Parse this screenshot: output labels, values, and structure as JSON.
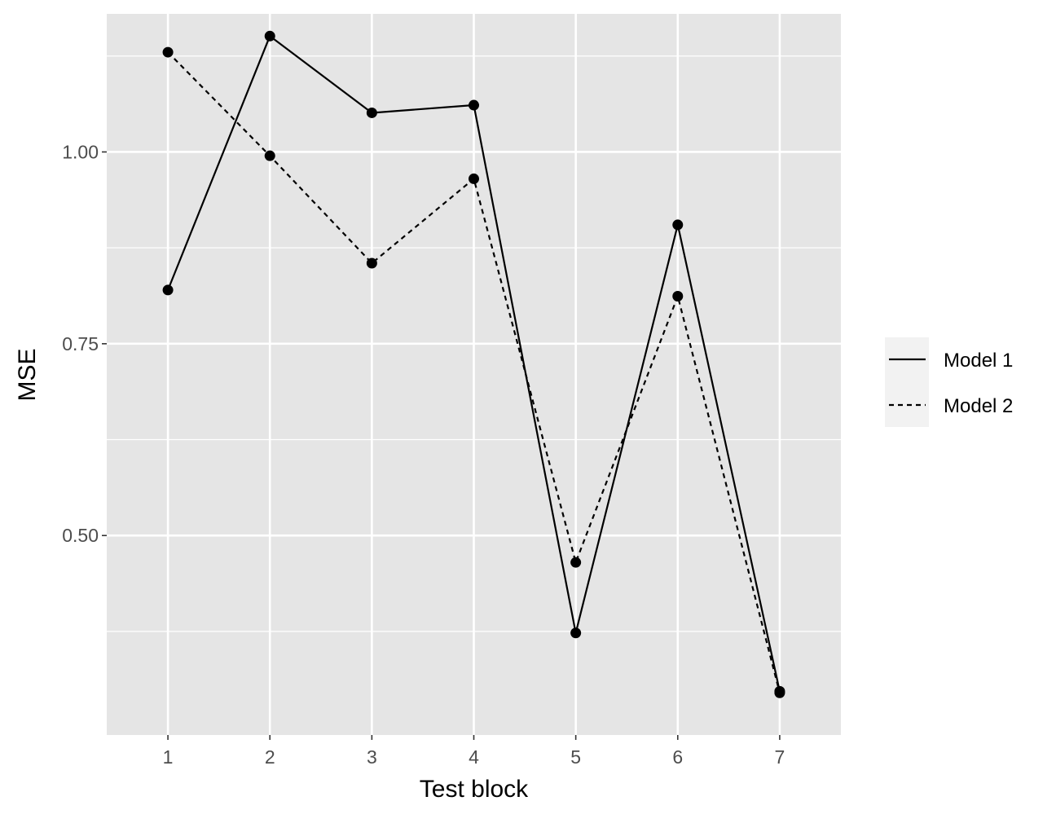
{
  "chart_data": {
    "type": "line",
    "title": "",
    "xlabel": "Test block",
    "ylabel": "MSE",
    "x": [
      1,
      2,
      3,
      4,
      5,
      6,
      7
    ],
    "x_tick_labels": [
      "1",
      "2",
      "3",
      "4",
      "5",
      "6",
      "7"
    ],
    "xlim": [
      0.4,
      7.6
    ],
    "ylim": [
      0.24,
      1.18
    ],
    "y_ticks": [
      0.5,
      0.75,
      1.0
    ],
    "y_tick_labels": [
      "0.50",
      "0.75",
      "1.00"
    ],
    "y_minor_ticks": [
      0.375,
      0.625,
      0.875,
      1.125
    ],
    "grid": true,
    "legend_position": "right",
    "series": [
      {
        "name": "Model 1",
        "linetype": "solid",
        "values": [
          0.82,
          1.151,
          1.051,
          1.061,
          0.373,
          0.905,
          0.297
        ]
      },
      {
        "name": "Model 2",
        "linetype": "dashed",
        "values": [
          1.13,
          0.995,
          0.855,
          0.965,
          0.465,
          0.812,
          0.295
        ]
      }
    ],
    "colors": {
      "panel": "#e5e5e5",
      "grid": "#ffffff",
      "line": "#000000",
      "text": "#4d4d4d"
    }
  }
}
